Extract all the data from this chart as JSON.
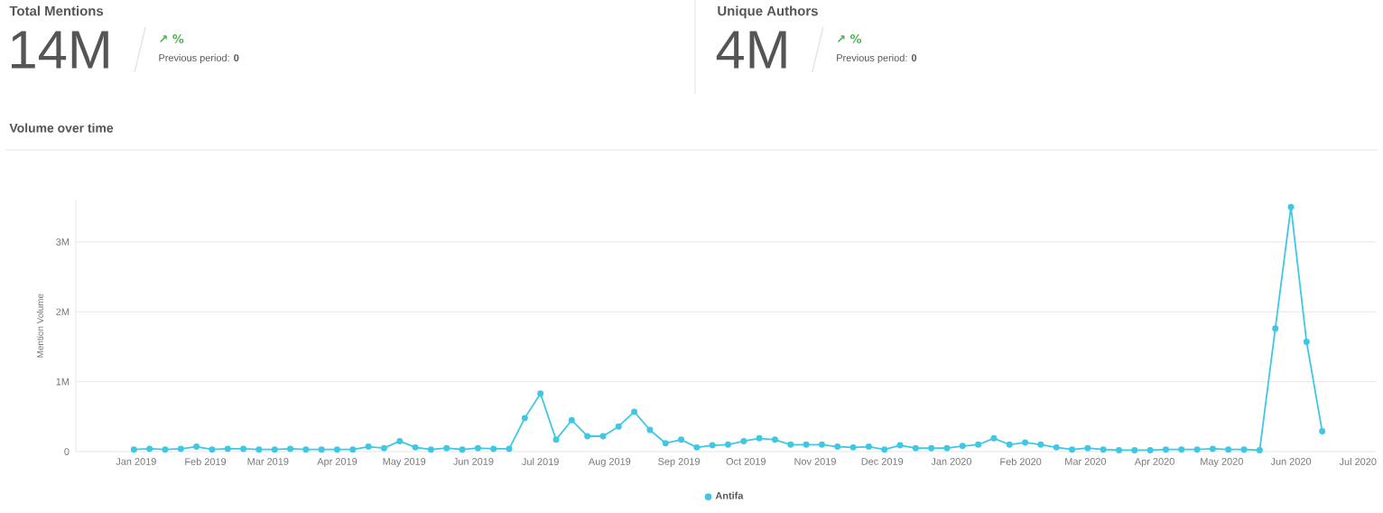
{
  "chart_data": [
    {
      "type": "other",
      "title": "Total Mentions",
      "annotations": [
        "14M",
        "↗ %",
        "Previous period: **0**"
      ]
    },
    {
      "type": "other",
      "title": "Unique Authors",
      "annotations": [
        "4M",
        "↗ %",
        "Previous period: **0**"
      ]
    },
    {
      "type": "line",
      "title": "Volume over time",
      "ylabel": "Mention Volume",
      "grid": "y",
      "legend": "bottom",
      "marker": "circle",
      "line_style": "solid",
      "xlim": [
        "2018-12-05",
        "2020-07-09"
      ],
      "ylim": [
        0,
        3600000
      ],
      "xticks": [
        {
          "value": "2019-01-01",
          "label": "Jan 2019"
        },
        {
          "value": "2019-02-01",
          "label": "Feb 2019"
        },
        {
          "value": "2019-03-01",
          "label": "Mar 2019"
        },
        {
          "value": "2019-04-01",
          "label": "Apr 2019"
        },
        {
          "value": "2019-05-01",
          "label": "May 2019"
        },
        {
          "value": "2019-06-01",
          "label": "Jun 2019"
        },
        {
          "value": "2019-07-01",
          "label": "Jul 2019"
        },
        {
          "value": "2019-08-01",
          "label": "Aug 2019"
        },
        {
          "value": "2019-09-01",
          "label": "Sep 2019"
        },
        {
          "value": "2019-10-01",
          "label": "Oct 2019"
        },
        {
          "value": "2019-11-01",
          "label": "Nov 2019"
        },
        {
          "value": "2019-12-01",
          "label": "Dec 2019"
        },
        {
          "value": "2020-01-01",
          "label": "Jan 2020"
        },
        {
          "value": "2020-02-01",
          "label": "Feb 2020"
        },
        {
          "value": "2020-03-01",
          "label": "Mar 2020"
        },
        {
          "value": "2020-04-01",
          "label": "Apr 2020"
        },
        {
          "value": "2020-05-01",
          "label": "May 2020"
        },
        {
          "value": "2020-06-01",
          "label": "Jun 2020"
        },
        {
          "value": "2020-07-01",
          "label": "Jul 2020"
        }
      ],
      "yticks": [
        {
          "value": 0,
          "label": "0"
        },
        {
          "value": 1000000,
          "label": "1M"
        },
        {
          "value": 2000000,
          "label": "2M"
        },
        {
          "value": 3000000,
          "label": "3M"
        }
      ],
      "x": [
        "2018-12-31",
        "2019-01-07",
        "2019-01-14",
        "2019-01-21",
        "2019-01-28",
        "2019-02-04",
        "2019-02-11",
        "2019-02-18",
        "2019-02-25",
        "2019-03-04",
        "2019-03-11",
        "2019-03-18",
        "2019-03-25",
        "2019-04-01",
        "2019-04-08",
        "2019-04-15",
        "2019-04-22",
        "2019-04-29",
        "2019-05-06",
        "2019-05-13",
        "2019-05-20",
        "2019-05-27",
        "2019-06-03",
        "2019-06-10",
        "2019-06-17",
        "2019-06-24",
        "2019-07-01",
        "2019-07-08",
        "2019-07-15",
        "2019-07-22",
        "2019-07-29",
        "2019-08-05",
        "2019-08-12",
        "2019-08-19",
        "2019-08-26",
        "2019-09-02",
        "2019-09-09",
        "2019-09-16",
        "2019-09-23",
        "2019-09-30",
        "2019-10-07",
        "2019-10-14",
        "2019-10-21",
        "2019-10-28",
        "2019-11-04",
        "2019-11-11",
        "2019-11-18",
        "2019-11-25",
        "2019-12-02",
        "2019-12-09",
        "2019-12-16",
        "2019-12-23",
        "2019-12-30",
        "2020-01-06",
        "2020-01-13",
        "2020-01-20",
        "2020-01-27",
        "2020-02-03",
        "2020-02-10",
        "2020-02-17",
        "2020-02-24",
        "2020-03-02",
        "2020-03-09",
        "2020-03-16",
        "2020-03-23",
        "2020-03-30",
        "2020-04-06",
        "2020-04-13",
        "2020-04-20",
        "2020-04-27",
        "2020-05-04",
        "2020-05-11",
        "2020-05-18",
        "2020-05-25",
        "2020-06-01",
        "2020-06-08",
        "2020-06-15"
      ],
      "series": [
        {
          "name": "Antifa",
          "color": "#3ec8e4",
          "values": [
            30000,
            40000,
            30000,
            40000,
            70000,
            30000,
            40000,
            40000,
            30000,
            30000,
            40000,
            30000,
            30000,
            30000,
            30000,
            70000,
            50000,
            150000,
            60000,
            30000,
            50000,
            30000,
            50000,
            40000,
            40000,
            480000,
            830000,
            170000,
            450000,
            220000,
            220000,
            360000,
            570000,
            310000,
            120000,
            170000,
            60000,
            90000,
            100000,
            150000,
            190000,
            170000,
            100000,
            100000,
            100000,
            70000,
            60000,
            70000,
            30000,
            90000,
            50000,
            50000,
            50000,
            80000,
            100000,
            190000,
            100000,
            130000,
            100000,
            60000,
            30000,
            50000,
            30000,
            20000,
            20000,
            20000,
            30000,
            30000,
            30000,
            40000,
            30000,
            30000,
            20000,
            1760000,
            3500000,
            1570000,
            290000
          ]
        }
      ]
    }
  ]
}
